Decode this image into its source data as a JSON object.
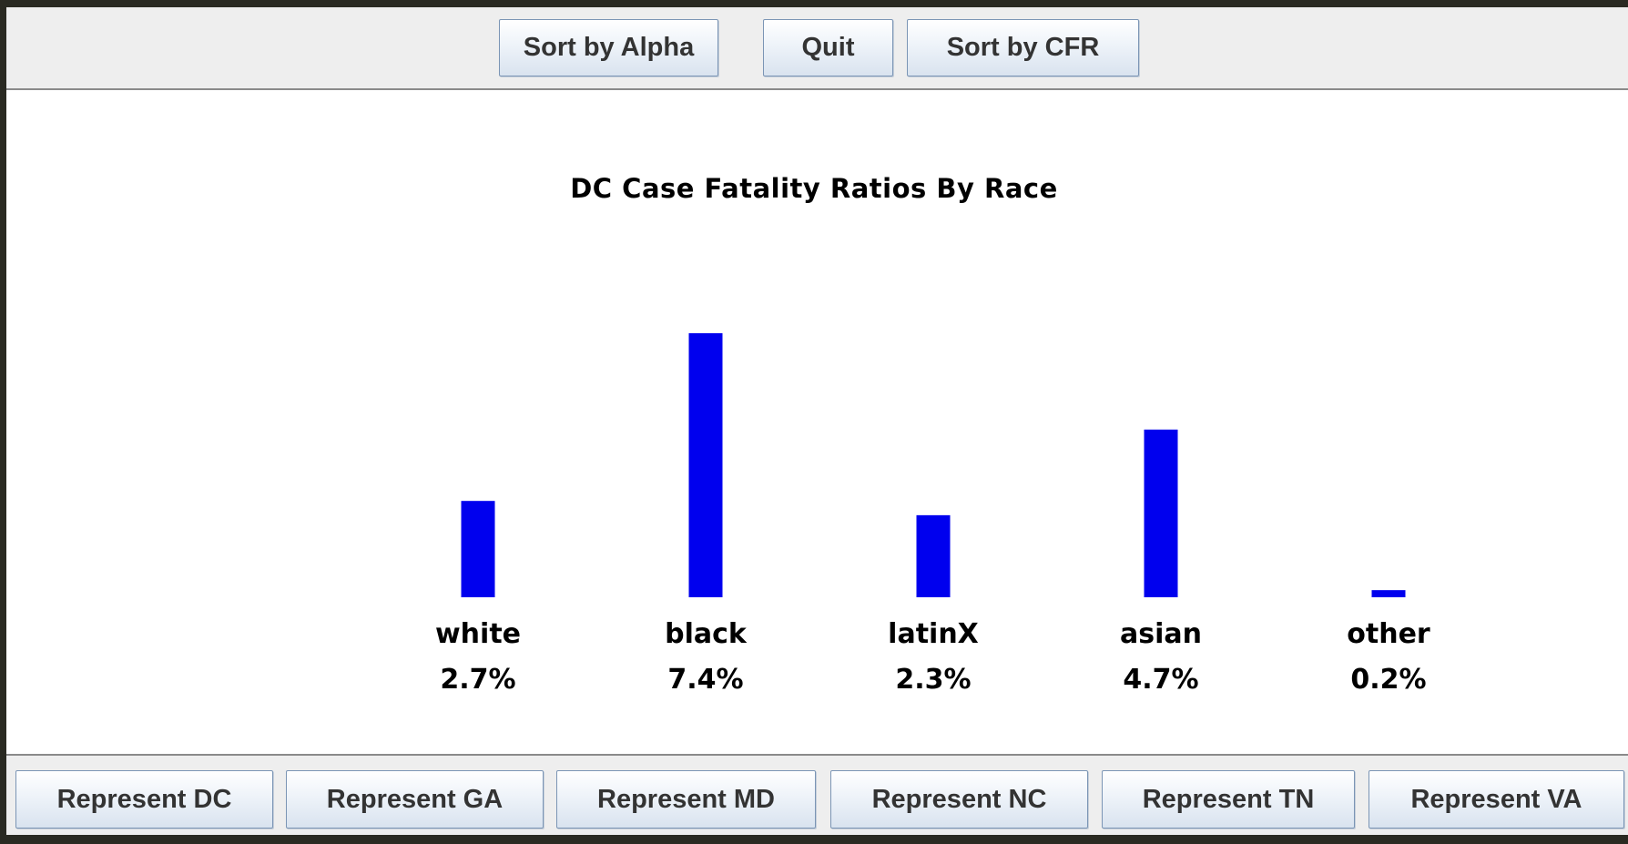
{
  "toolbar": {
    "sort_alpha_label": "Sort by Alpha",
    "quit_label": "Quit",
    "sort_cfr_label": "Sort by CFR"
  },
  "state_buttons": {
    "dc": "Represent DC",
    "ga": "Represent GA",
    "md": "Represent MD",
    "nc": "Represent NC",
    "tn": "Represent TN",
    "va": "Represent VA"
  },
  "colors": {
    "bar": "#0000ee",
    "panel": "#eeeeee",
    "button_text": "#333333"
  },
  "chart_data": {
    "type": "bar",
    "title": "DC Case Fatality Ratios By Race",
    "categories": [
      "white",
      "black",
      "latinX",
      "asian",
      "other"
    ],
    "values": [
      2.7,
      7.4,
      2.3,
      4.7,
      0.2
    ],
    "value_labels": [
      "2.7%",
      "7.4%",
      "2.3%",
      "4.7%",
      "0.2%"
    ],
    "unit": "%",
    "axes_visible": false,
    "grid": false
  }
}
